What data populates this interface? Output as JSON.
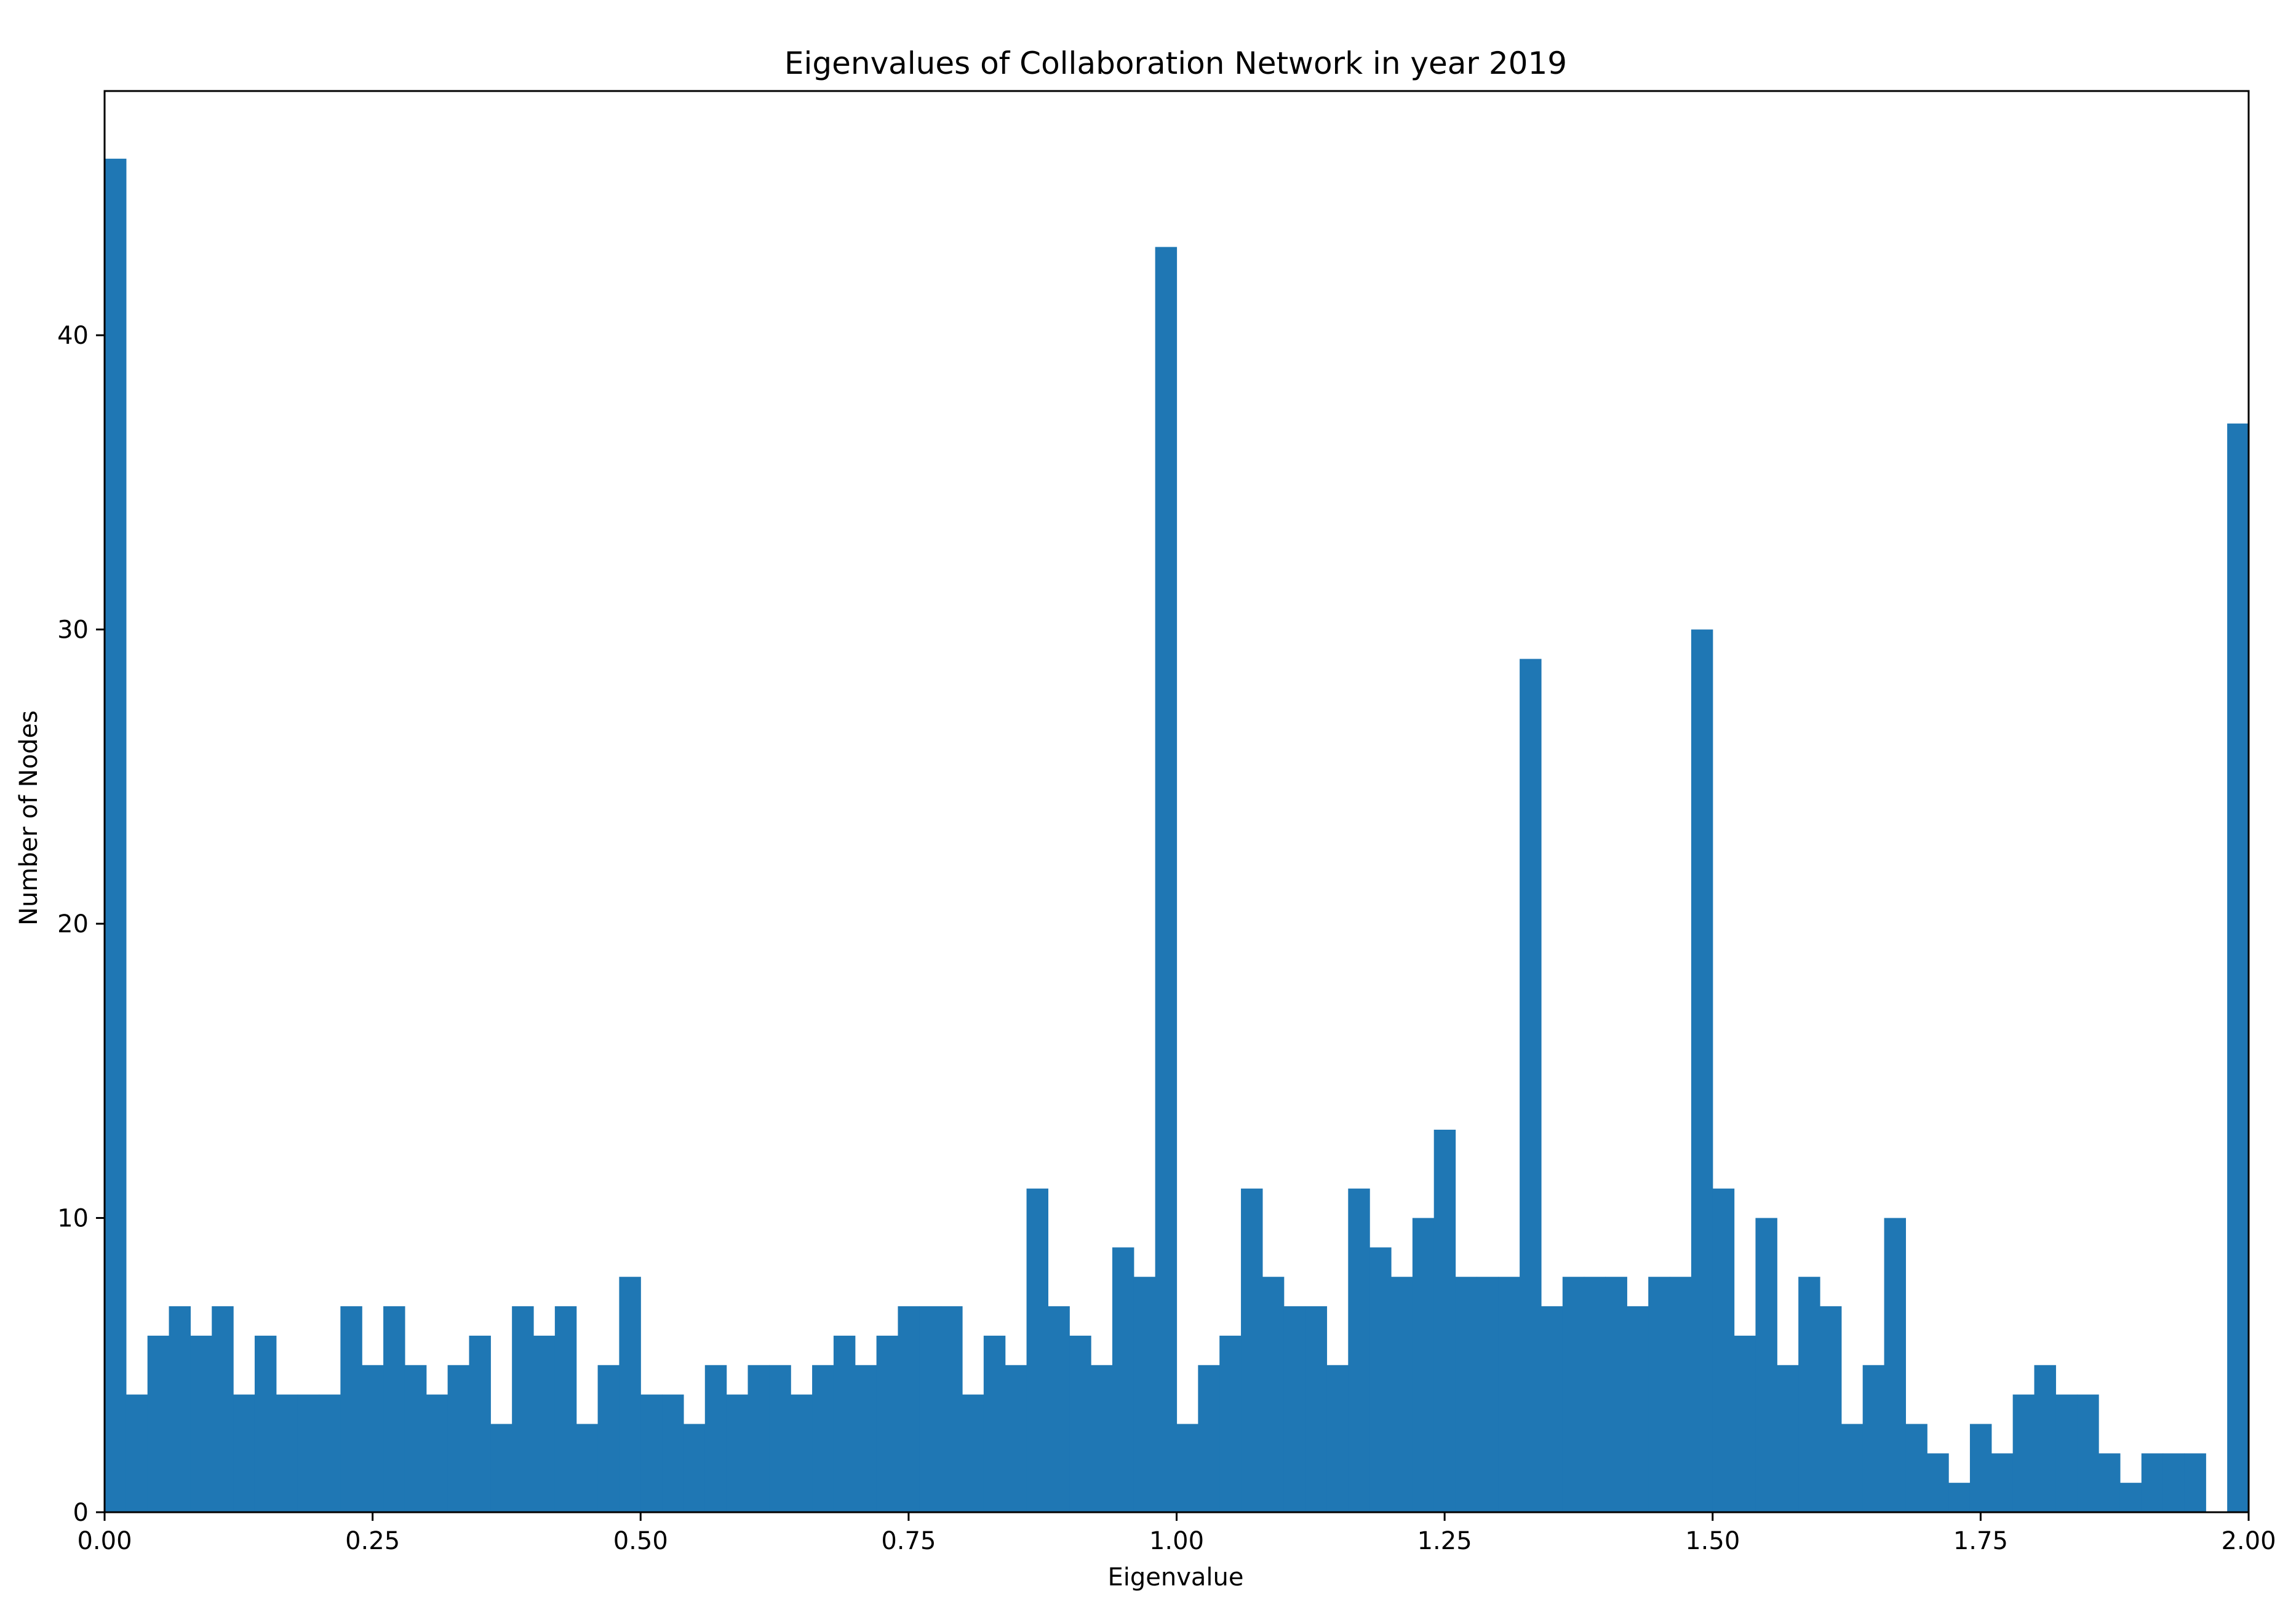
{
  "chart_data": {
    "type": "bar",
    "title": "Eigenvalues of Collaboration Network in year 2019",
    "xlabel": "Eigenvalue",
    "ylabel": "Number of Nodes",
    "xlim": [
      0,
      2
    ],
    "ylim": [
      0,
      48.3
    ],
    "x_ticks": [
      0,
      0.25,
      0.5,
      0.75,
      1,
      1.25,
      1.5,
      1.75,
      2
    ],
    "x_tick_labels": [
      "0.00",
      "0.25",
      "0.50",
      "0.75",
      "1.00",
      "1.25",
      "1.50",
      "1.75",
      "2.00"
    ],
    "y_ticks": [
      0,
      10,
      20,
      30,
      40
    ],
    "y_tick_labels": [
      "0",
      "10",
      "20",
      "30",
      "40"
    ],
    "grid": false,
    "bin_width": 0.02,
    "bar_color": "#1f77b4",
    "values": [
      46,
      4,
      6,
      7,
      6,
      7,
      4,
      6,
      4,
      4,
      4,
      7,
      5,
      7,
      5,
      4,
      5,
      6,
      3,
      7,
      6,
      7,
      3,
      5,
      8,
      4,
      4,
      3,
      5,
      4,
      5,
      5,
      4,
      5,
      6,
      5,
      6,
      7,
      7,
      7,
      4,
      6,
      5,
      11,
      7,
      6,
      5,
      9,
      8,
      43,
      3,
      5,
      6,
      11,
      8,
      7,
      7,
      5,
      11,
      9,
      8,
      10,
      13,
      8,
      8,
      8,
      29,
      7,
      8,
      8,
      8,
      7,
      8,
      8,
      30,
      11,
      6,
      10,
      5,
      8,
      7,
      3,
      5,
      10,
      3,
      2,
      1,
      3,
      2,
      4,
      5,
      4,
      4,
      2,
      1,
      2,
      2,
      2,
      0,
      37
    ]
  }
}
